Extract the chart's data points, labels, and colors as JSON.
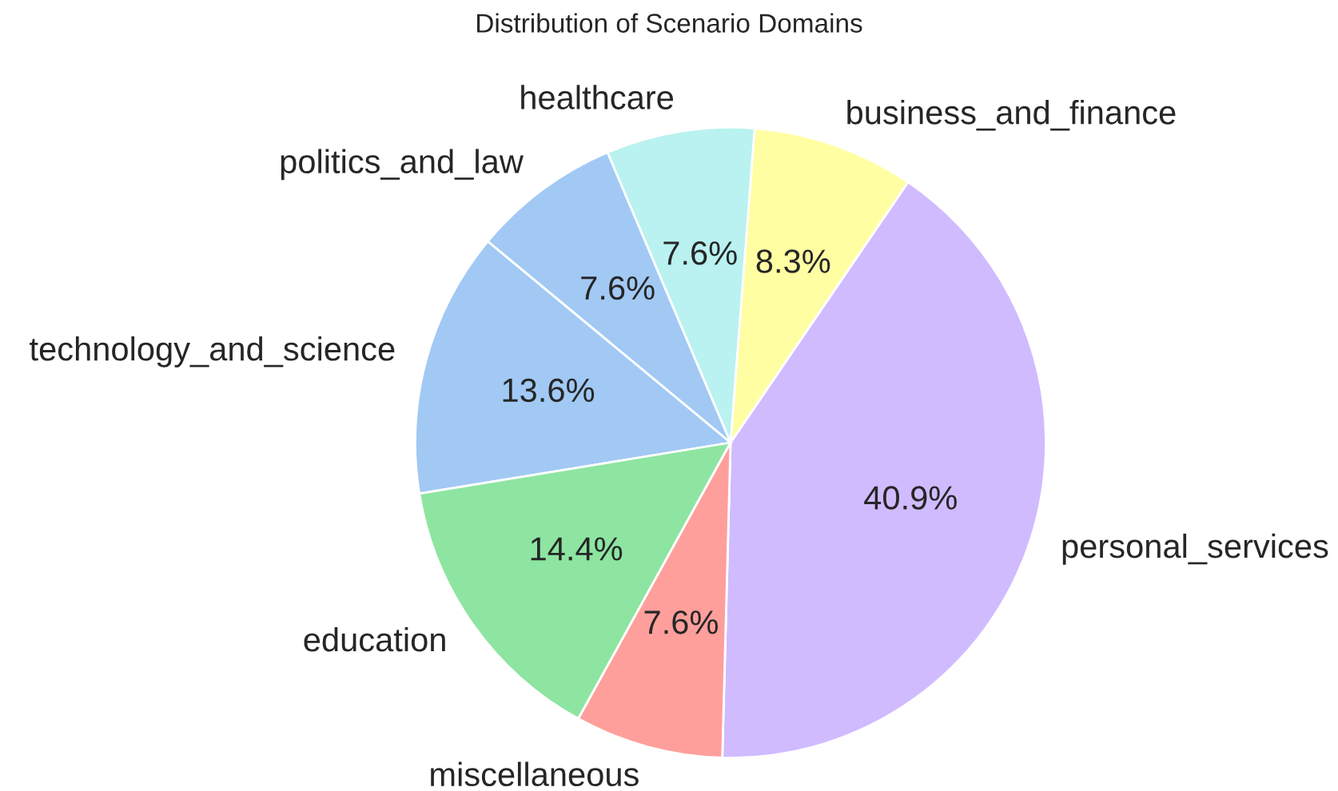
{
  "chart_data": {
    "type": "pie",
    "title": "Distribution of Scenario Domains",
    "categories": [
      "personal_services",
      "business_and_finance",
      "healthcare",
      "politics_and_law",
      "technology_and_science",
      "education",
      "miscellaneous"
    ],
    "values": [
      40.9,
      8.3,
      7.6,
      7.6,
      13.6,
      14.4,
      7.6
    ],
    "value_labels": [
      "40.9%",
      "8.3%",
      "7.6%",
      "7.6%",
      "13.6%",
      "14.4%",
      "7.6%"
    ],
    "colors": [
      "#d0bbff",
      "#fffea3",
      "#b9f2f0",
      "#a1c9f4",
      "#a1c9f4",
      "#8de5a1",
      "#ff9f9b"
    ],
    "legend": false
  }
}
